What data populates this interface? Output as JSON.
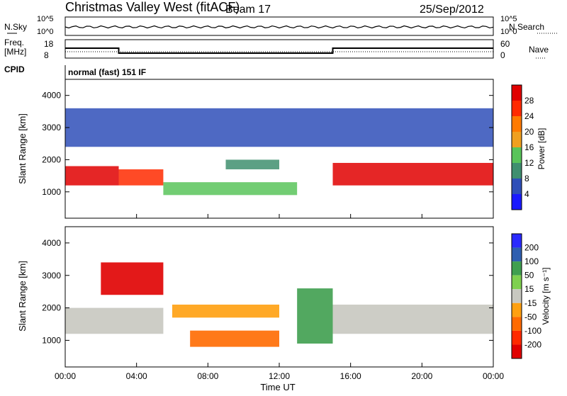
{
  "header": {
    "title": "Christmas Valley West (fitACF)",
    "beam": "Beam 17",
    "date": "25/Sep/2012"
  },
  "status_panels": {
    "nsky_label": "N.Sky",
    "nsearch_label": "N.Search",
    "noise_ticks": [
      "10^5",
      "10^0"
    ],
    "freq_label_1": "Freq.",
    "freq_label_2": "[MHz]",
    "freq_ticks": [
      "18",
      "8"
    ],
    "nave_label": "Nave",
    "nave_ticks": [
      "60",
      "0"
    ],
    "cpid_label": "CPID",
    "cpid_text": "normal (fast) 151 IF"
  },
  "axes": {
    "ylabel": "Slant Range [km]",
    "xlabel": "Time UT",
    "x_ticks": [
      "00:00",
      "04:00",
      "08:00",
      "12:00",
      "16:00",
      "20:00",
      "00:00"
    ],
    "y_ticks": [
      "1000",
      "2000",
      "3000",
      "4000"
    ]
  },
  "power_scale": {
    "label": "Power [dB]",
    "ticks": [
      "4",
      "8",
      "12",
      "16",
      "20",
      "24",
      "28"
    ],
    "colors": [
      "#1a1aff",
      "#2f4fb8",
      "#3f8f6f",
      "#59c45a",
      "#f0a020",
      "#ff7a00",
      "#ff2a00",
      "#e00000"
    ]
  },
  "velocity_scale": {
    "label": "Velocity [m s⁻¹]",
    "ticks": [
      "200",
      "100",
      "50",
      "15",
      "-15",
      "-50",
      "-100",
      "-200"
    ],
    "colors": [
      "#2a2aff",
      "#2f5fb0",
      "#3f9f4f",
      "#7fd04f",
      "#c8c8c0",
      "#ffa010",
      "#ff6a00",
      "#ff2a00",
      "#e00000"
    ]
  },
  "chart_data": {
    "type": "heatmap",
    "x_range_hours": [
      0,
      24
    ],
    "y_range_km": [
      180,
      4500
    ],
    "freq_schedule_mhz": [
      {
        "from": 0,
        "to": 3,
        "value": 14
      },
      {
        "from": 3,
        "to": 15,
        "value": 10.5
      },
      {
        "from": 15,
        "to": 24,
        "value": 14
      }
    ],
    "power_regions": [
      {
        "t0": 0,
        "t1": 3,
        "r0": 1200,
        "r1": 1800,
        "db": 28
      },
      {
        "t0": 3,
        "t1": 5.5,
        "r0": 1200,
        "r1": 1700,
        "db": 26
      },
      {
        "t0": 5.5,
        "t1": 13,
        "r0": 900,
        "r1": 1300,
        "db": 14
      },
      {
        "t0": 9,
        "t1": 12,
        "r0": 1700,
        "r1": 2000,
        "db": 10
      },
      {
        "t0": 15,
        "t1": 24,
        "r0": 1200,
        "r1": 1900,
        "db": 28
      },
      {
        "t0": 0,
        "t1": 24,
        "r0": 2400,
        "r1": 3600,
        "db": 6
      }
    ],
    "velocity_regions": [
      {
        "t0": 2,
        "t1": 5.5,
        "r0": 2400,
        "r1": 3400,
        "v": -200
      },
      {
        "t0": 0,
        "t1": 5.5,
        "r0": 1200,
        "r1": 2000,
        "v": 0
      },
      {
        "t0": 15,
        "t1": 24,
        "r0": 1200,
        "r1": 2100,
        "v": 0
      },
      {
        "t0": 7,
        "t1": 12,
        "r0": 800,
        "r1": 1300,
        "v": -60
      },
      {
        "t0": 6,
        "t1": 12,
        "r0": 1700,
        "r1": 2100,
        "v": -40
      },
      {
        "t0": 13,
        "t1": 15,
        "r0": 900,
        "r1": 2600,
        "v": 40
      }
    ]
  }
}
